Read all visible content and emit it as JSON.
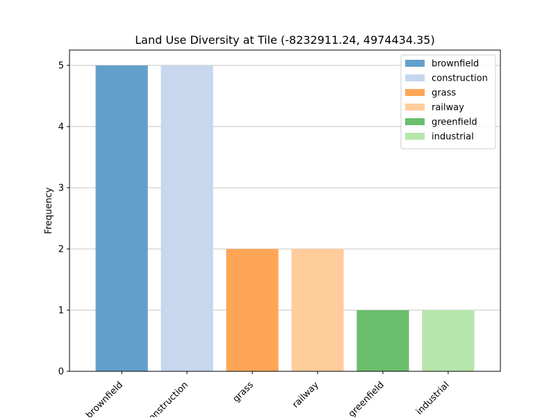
{
  "chart_data": {
    "type": "bar",
    "title": "Land Use Diversity at Tile (-8232911.24, 4974434.35)",
    "xlabel": "",
    "ylabel": "Frequency",
    "categories": [
      "brownfield",
      "construction",
      "grass",
      "railway",
      "greenfield",
      "industrial"
    ],
    "values": [
      5,
      5,
      2,
      2,
      1,
      1
    ],
    "colors": [
      "#62a0cb",
      "#c6d7ee",
      "#ffa656",
      "#ffcc9c",
      "#6bbe6b",
      "#b6e6ab"
    ],
    "ylim": [
      0,
      5.25
    ],
    "yticks": [
      0,
      1,
      2,
      3,
      4,
      5
    ],
    "grid": "horizontal",
    "legend_position": "top-right"
  }
}
